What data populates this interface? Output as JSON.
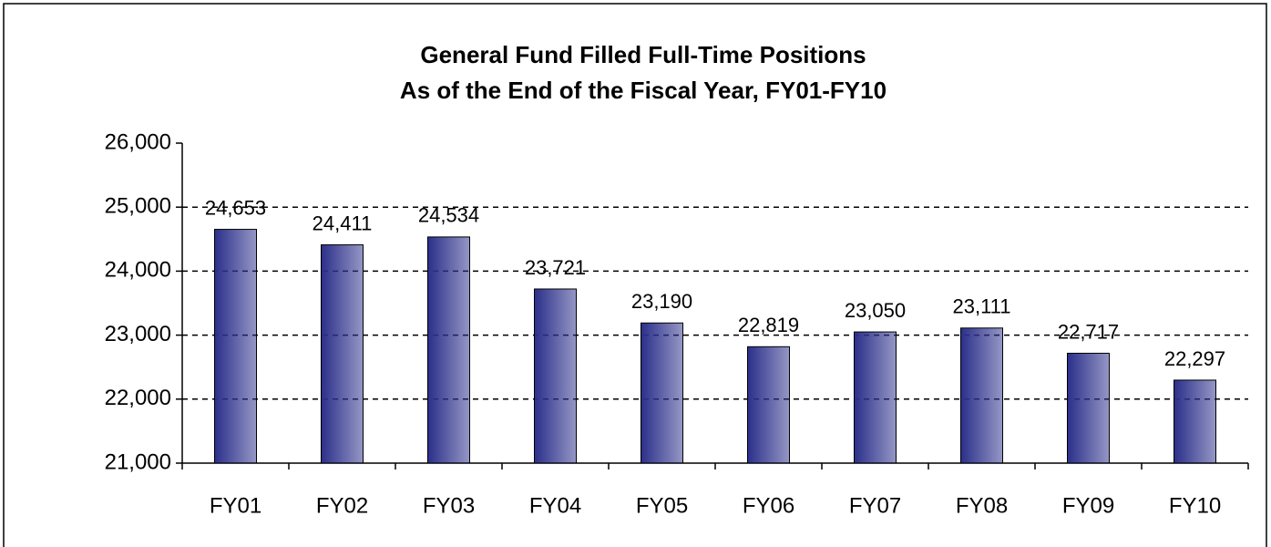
{
  "chart_data": {
    "type": "bar",
    "title": "General Fund Filled  Full-Time Positions",
    "subtitle": "As of the End of the Fiscal Year, FY01-FY10",
    "categories": [
      "FY01",
      "FY02",
      "FY03",
      "FY04",
      "FY05",
      "FY06",
      "FY07",
      "FY08",
      "FY09",
      "FY10"
    ],
    "values": [
      24653,
      24411,
      24534,
      23721,
      23190,
      22819,
      23050,
      23111,
      22717,
      22297
    ],
    "value_labels": [
      "24,653",
      "24,411",
      "24,534",
      "23,721",
      "23,190",
      "22,819",
      "23,050",
      "23,111",
      "22,717",
      "22,297"
    ],
    "color": "#2b2f8a",
    "ylim": [
      21000,
      26000
    ],
    "yticks": [
      {
        "value": 21000,
        "label": "21,000"
      },
      {
        "value": 22000,
        "label": "22,000"
      },
      {
        "value": 23000,
        "label": "23,000"
      },
      {
        "value": 24000,
        "label": "24,000"
      },
      {
        "value": 25000,
        "label": "25,000"
      },
      {
        "value": 26000,
        "label": "26,000"
      }
    ],
    "grid": true
  }
}
